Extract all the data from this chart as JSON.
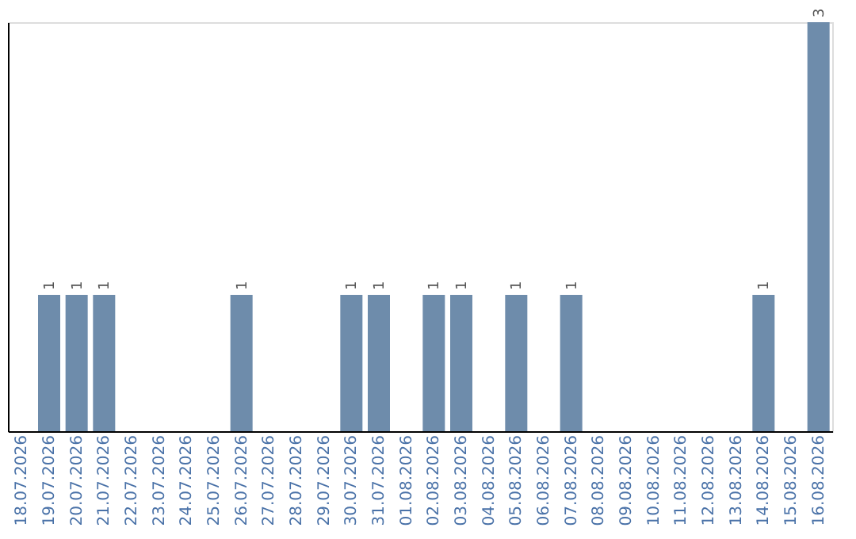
{
  "chart_data": {
    "type": "bar",
    "categories": [
      "18.07.2026",
      "19.07.2026",
      "20.07.2026",
      "21.07.2026",
      "22.07.2026",
      "23.07.2026",
      "24.07.2026",
      "25.07.2026",
      "26.07.2026",
      "27.07.2026",
      "28.07.2026",
      "29.07.2026",
      "30.07.2026",
      "31.07.2026",
      "01.08.2026",
      "02.08.2026",
      "03.08.2026",
      "04.08.2026",
      "05.08.2026",
      "06.08.2026",
      "07.08.2026",
      "08.08.2026",
      "09.08.2026",
      "10.08.2026",
      "11.08.2026",
      "12.08.2026",
      "13.08.2026",
      "14.08.2026",
      "15.08.2026",
      "16.08.2026"
    ],
    "values": [
      0,
      1,
      1,
      1,
      0,
      0,
      0,
      0,
      1,
      0,
      0,
      0,
      1,
      1,
      0,
      1,
      1,
      0,
      1,
      0,
      1,
      0,
      0,
      0,
      0,
      0,
      0,
      1,
      0,
      3
    ],
    "value_labels": [
      null,
      "1",
      "1",
      "1",
      null,
      null,
      null,
      null,
      "1",
      null,
      null,
      null,
      "1",
      "1",
      null,
      "1",
      "1",
      null,
      "1",
      null,
      "1",
      null,
      null,
      null,
      null,
      null,
      null,
      "1",
      null,
      "3"
    ],
    "color": "#6e8cab",
    "tick_labels": "x",
    "grid": false
  }
}
